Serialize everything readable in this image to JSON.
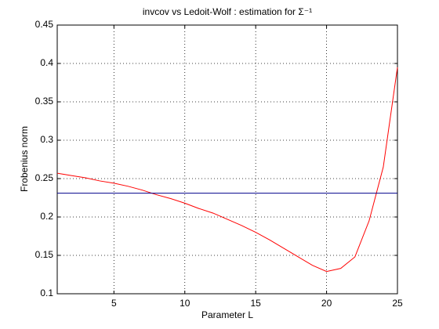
{
  "chart_data": {
    "type": "line",
    "title": "invcov vs Ledoit-Wolf : estimation for  Σ⁻¹",
    "xlabel": "Parameter L",
    "ylabel": "Frobenius norm",
    "x": [
      1,
      2,
      3,
      4,
      5,
      6,
      7,
      8,
      9,
      10,
      11,
      12,
      13,
      14,
      15,
      16,
      17,
      18,
      19,
      20,
      21,
      22,
      23,
      24,
      25
    ],
    "series": [
      {
        "color": "#ff0000",
        "values": [
          0.257,
          0.254,
          0.251,
          0.247,
          0.244,
          0.24,
          0.235,
          0.229,
          0.224,
          0.218,
          0.211,
          0.205,
          0.197,
          0.189,
          0.18,
          0.17,
          0.159,
          0.148,
          0.137,
          0.129,
          0.133,
          0.148,
          0.195,
          0.265,
          0.395
        ]
      },
      {
        "color": "#00008b",
        "values": [
          0.231,
          0.231,
          0.231,
          0.231,
          0.231,
          0.231,
          0.231,
          0.231,
          0.231,
          0.231,
          0.231,
          0.231,
          0.231,
          0.231,
          0.231,
          0.231,
          0.231,
          0.231,
          0.231,
          0.231,
          0.231,
          0.231,
          0.231,
          0.231,
          0.231
        ]
      }
    ],
    "xlim": [
      1,
      25
    ],
    "xticks": [
      5,
      10,
      15,
      20,
      25
    ],
    "ylim": [
      0.1,
      0.45
    ],
    "yticks": [
      0.1,
      0.15,
      0.2,
      0.25,
      0.3,
      0.35,
      0.4,
      0.45
    ],
    "grid": true
  }
}
